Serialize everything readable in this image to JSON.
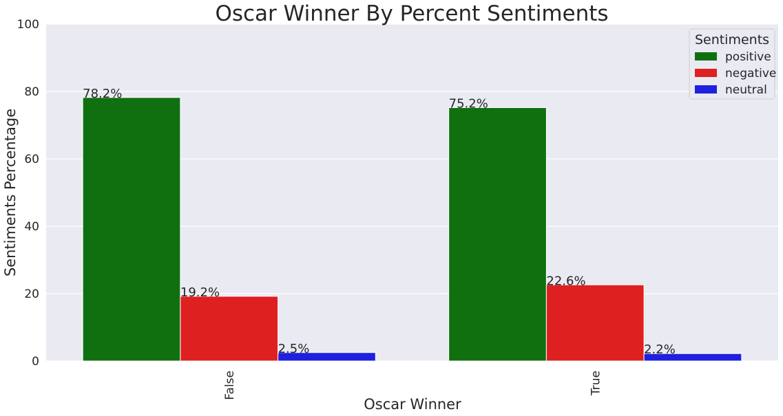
{
  "chart_data": {
    "type": "bar",
    "title": "Oscar Winner By Percent Sentiments",
    "xlabel": "Oscar Winner",
    "ylabel": "Sentiments Percentage",
    "categories": [
      "False",
      "True"
    ],
    "ylim": [
      0,
      100
    ],
    "yticks": [
      0,
      20,
      40,
      60,
      80,
      100
    ],
    "grid": true,
    "legend": {
      "title": "Sentiments",
      "placement": "top-right"
    },
    "series": [
      {
        "name": "positive",
        "color": "#107010",
        "values": [
          78.2,
          75.2
        ],
        "labels": [
          "78.2%",
          "75.2%"
        ]
      },
      {
        "name": "negative",
        "color": "#df2020",
        "values": [
          19.2,
          22.6
        ],
        "labels": [
          "19.2%",
          "22.6%"
        ]
      },
      {
        "name": "neutral",
        "color": "#2020df",
        "values": [
          2.5,
          2.2
        ],
        "labels": [
          "2.5%",
          "2.2%"
        ]
      }
    ]
  }
}
